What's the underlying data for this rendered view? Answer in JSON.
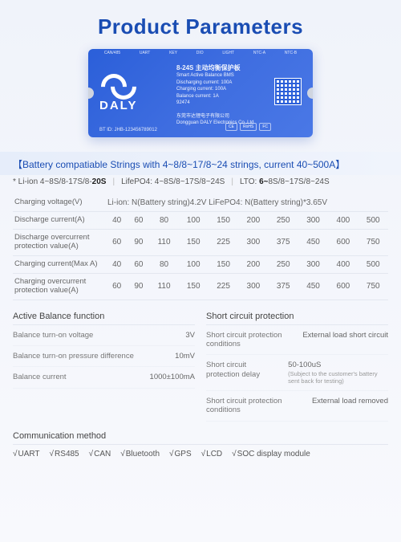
{
  "title": "Product Parameters",
  "product": {
    "brand": "DALY",
    "top_labels": [
      "CAN/485",
      "UART",
      "KEY",
      "DIO",
      "LIGHT",
      "NTC-A",
      "NTC-B"
    ],
    "model": "8-24S",
    "model_cn": "主动均衡保护板",
    "subtitle": "Smart Active Balance BMS",
    "lines": [
      "Discharging current: 100A",
      "Charging current: 100A",
      "Balance current: 1A",
      "92474"
    ],
    "company_cn": "东莞市达锂电子有限公司",
    "company_en": "Dongguan DALY Electronics Co.,Ltd",
    "bt_id": "BT ID: JHB-123456789012",
    "badges": [
      "CE",
      "RoHS",
      "FC"
    ]
  },
  "band": {
    "headline": "【Battery compatiable Strings with 4~8/8~17/8~24 strings, current 40~500A】",
    "li_label": "* Li-ion 4~8S/8-17S/8-",
    "li_bold": "20S",
    "lifepo_label": "LifePO4: 4~8S/8~17S/8~24S",
    "lto_label": "LTO: ",
    "lto_bold": "6~",
    "lto_rest": "8S/8~17S/8~24S"
  },
  "spec_table": {
    "row0_label": "Charging voltage(V)",
    "row0_value": "Li-ion: N(Battery string)4.2V LiFePO4: N(Battery string)*3.65V",
    "columns": [
      "40",
      "60",
      "80",
      "100",
      "150",
      "200",
      "250",
      "300",
      "400",
      "500"
    ],
    "r1_label": "Discharge current(A)",
    "r1": [
      "40",
      "60",
      "80",
      "100",
      "150",
      "200",
      "250",
      "300",
      "400",
      "500"
    ],
    "r2_label": "Discharge overcurrent protection value(A)",
    "r2": [
      "60",
      "90",
      "110",
      "150",
      "225",
      "300",
      "375",
      "450",
      "600",
      "750"
    ],
    "r3_label": "Charging current(Max A)",
    "r3": [
      "40",
      "60",
      "80",
      "100",
      "150",
      "200",
      "250",
      "300",
      "400",
      "500"
    ],
    "r4_label": "Charging overcurrent protection value(A)",
    "r4": [
      "60",
      "90",
      "110",
      "150",
      "225",
      "300",
      "375",
      "450",
      "600",
      "750"
    ]
  },
  "left": {
    "title": "Active Balance function",
    "k1": "Balance turn-on voltage",
    "v1": "3V",
    "k2": "Balance turn-on pressure difference",
    "v2": "10mV",
    "k3": "Balance current",
    "v3": "1000±100mA"
  },
  "right": {
    "title": "Short circuit protection",
    "k1": "Short circuit protection conditions",
    "v1": "External load short circuit",
    "k2": "Short circuit protection delay",
    "v2": "50-100uS",
    "v2note": "(Subject to the customer's battery sent back for testing)",
    "k3": "Short circuit protection conditions",
    "v3": "External load removed"
  },
  "comm": {
    "title": "Communication method",
    "items": [
      "UART",
      "RS485",
      "CAN",
      "Bluetooth",
      "GPS",
      "LCD",
      "SOC display module"
    ]
  }
}
